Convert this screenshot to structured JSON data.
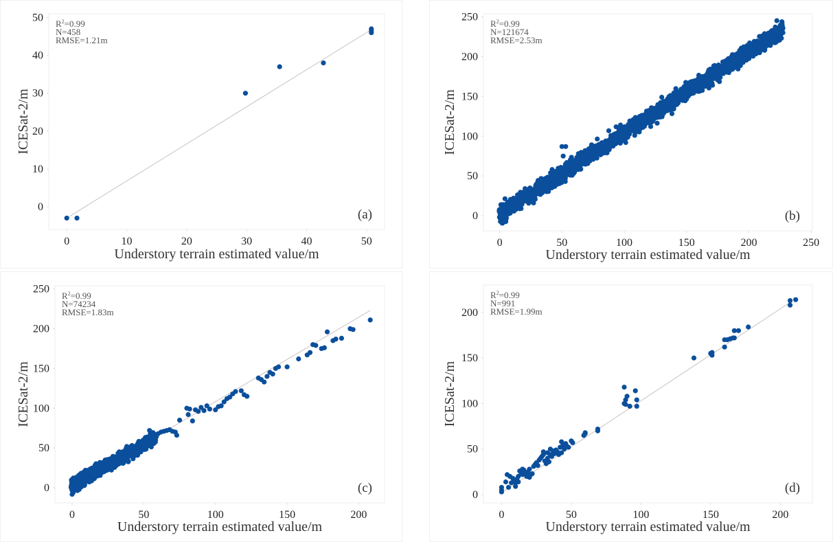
{
  "figure": {
    "marker_color": "#0b4f9c",
    "fit_line_color": "#cfc6c6",
    "frame_color": "#ececec"
  },
  "chart_data": [
    {
      "type": "scatter",
      "panel_label": "(a)",
      "xlabel": "Understory terrain estimated value/m",
      "ylabel": "ICESat-2/m",
      "xlim": [
        -3,
        53
      ],
      "ylim": [
        -6,
        51
      ],
      "xticks": [
        0,
        10,
        20,
        30,
        40,
        50
      ],
      "yticks": [
        0,
        10,
        20,
        30,
        40,
        50
      ],
      "stats": {
        "r2_prefix": "R",
        "r2_sup": "2",
        "r2_value": "=0.99",
        "n": "N=458",
        "rmse": "RMSE=1.21m"
      },
      "fit_line": {
        "x": [
          0,
          51
        ],
        "y": [
          -3,
          47
        ]
      },
      "points": {
        "x": [
          0,
          1.7,
          29.8,
          35.5,
          42.8,
          50.8,
          50.8,
          50.8
        ],
        "y": [
          -3,
          -3,
          30,
          37,
          38,
          47,
          46,
          46.5
        ]
      }
    },
    {
      "type": "scatter",
      "panel_label": "(b)",
      "xlabel": "Understory terrain estimated value/m",
      "ylabel": "ICESat-2/m",
      "xlim": [
        -13,
        251
      ],
      "ylim": [
        -19,
        254
      ],
      "xticks": [
        0,
        50,
        100,
        150,
        200,
        250
      ],
      "yticks": [
        0,
        50,
        100,
        150,
        200,
        250
      ],
      "stats": {
        "r2_prefix": "R",
        "r2_sup": "2",
        "r2_value": "=0.99",
        "n": "N=121674",
        "rmse": "RMSE=2.53m"
      },
      "cloud": {
        "x_range": [
          0,
          227
        ],
        "slope": 1.02,
        "intercept": 2,
        "spread": 7,
        "count": 2400
      },
      "points": {
        "x": [
          50,
          53,
          51
        ],
        "y": [
          87,
          87,
          75
        ]
      }
    },
    {
      "type": "scatter",
      "panel_label": "(c)",
      "xlabel": "Understory terrain estimated value/m",
      "ylabel": "ICESat-2/m",
      "xlim": [
        -12,
        218
      ],
      "ylim": [
        -19,
        254
      ],
      "xticks": [
        0,
        50,
        100,
        150,
        200
      ],
      "yticks": [
        0,
        50,
        100,
        150,
        200,
        250
      ],
      "stats": {
        "r2_prefix": "R",
        "r2_sup": "2",
        "r2_value": "=0.99",
        "n": "N=74234",
        "rmse": "RMSE=1.83m"
      },
      "fit_line": {
        "x": [
          0,
          208
        ],
        "y": [
          2,
          223
        ]
      },
      "cloud": {
        "x_range": [
          0,
          58
        ],
        "slope": 1.02,
        "intercept": 3,
        "spread": 5,
        "count": 1500
      },
      "points": {
        "x": [
          54,
          56,
          58,
          60,
          62,
          64,
          66,
          68,
          70,
          72,
          73,
          75,
          80,
          81,
          82,
          84,
          86,
          88,
          90,
          92,
          94,
          96,
          100,
          102,
          104,
          106,
          108,
          110,
          112,
          114,
          118,
          120,
          122,
          130,
          132,
          134,
          136,
          138,
          140,
          142,
          144,
          150,
          158,
          164,
          166,
          168,
          170,
          174,
          176,
          178,
          182,
          184,
          188,
          194,
          196,
          208
        ],
        "y": [
          72,
          66,
          67,
          68,
          70,
          71,
          72,
          73,
          71,
          70,
          66,
          85,
          100,
          92,
          99,
          84,
          98,
          96,
          101,
          97,
          103,
          99,
          98,
          102,
          103,
          108,
          112,
          114,
          118,
          121,
          122,
          117,
          115,
          138,
          136,
          133,
          140,
          145,
          143,
          150,
          152,
          152,
          162,
          167,
          170,
          180,
          179,
          175,
          176,
          196,
          185,
          187,
          188,
          200,
          199,
          211
        ]
      }
    },
    {
      "type": "scatter",
      "panel_label": "(d)",
      "xlabel": "Understory terrain estimated value/m",
      "ylabel": "ICESat-2/m",
      "xlim": [
        -13,
        223
      ],
      "ylim": [
        -9,
        230
      ],
      "xticks": [
        0,
        50,
        100,
        150,
        200
      ],
      "yticks": [
        0,
        50,
        100,
        150,
        200
      ],
      "stats": {
        "r2_prefix": "R",
        "r2_sup": "2",
        "r2_value": "=0.99",
        "n": "N=991",
        "rmse": "RMSE=1.99m"
      },
      "fit_line": {
        "x": [
          0,
          208
        ],
        "y": [
          2,
          212
        ]
      },
      "points": {
        "x": [
          0,
          0,
          0,
          3,
          4,
          5,
          6,
          7,
          8,
          9,
          10,
          10,
          11,
          12,
          12,
          13,
          14,
          15,
          15,
          16,
          17,
          18,
          18,
          19,
          20,
          20,
          21,
          22,
          23,
          24,
          25,
          26,
          27,
          28,
          29,
          30,
          30,
          31,
          32,
          33,
          33,
          34,
          35,
          35,
          36,
          37,
          38,
          39,
          40,
          41,
          42,
          43,
          43,
          44,
          45,
          46,
          47,
          48,
          50,
          51,
          59,
          60,
          60,
          69,
          69,
          88,
          88,
          89,
          89,
          90,
          92,
          96,
          97,
          97,
          138,
          150,
          151,
          151,
          160,
          160,
          162,
          164,
          166,
          167,
          167,
          170,
          177,
          207,
          207,
          211
        ],
        "y": [
          3,
          5,
          8,
          14,
          22,
          8,
          20,
          13,
          18,
          15,
          9,
          13,
          17,
          14,
          20,
          26,
          24,
          28,
          22,
          27,
          23,
          20,
          24,
          25,
          19,
          28,
          22,
          23,
          31,
          33,
          35,
          32,
          38,
          40,
          42,
          44,
          47,
          37,
          34,
          40,
          46,
          36,
          44,
          50,
          42,
          48,
          45,
          49,
          47,
          44,
          52,
          46,
          58,
          54,
          50,
          56,
          53,
          52,
          59,
          57,
          65,
          67,
          68,
          72,
          70,
          100,
          118,
          104,
          99,
          108,
          97,
          114,
          97,
          104,
          150,
          155,
          153,
          156,
          170,
          162,
          170,
          171,
          172,
          172,
          180,
          180,
          184,
          213,
          208,
          214
        ]
      }
    }
  ]
}
